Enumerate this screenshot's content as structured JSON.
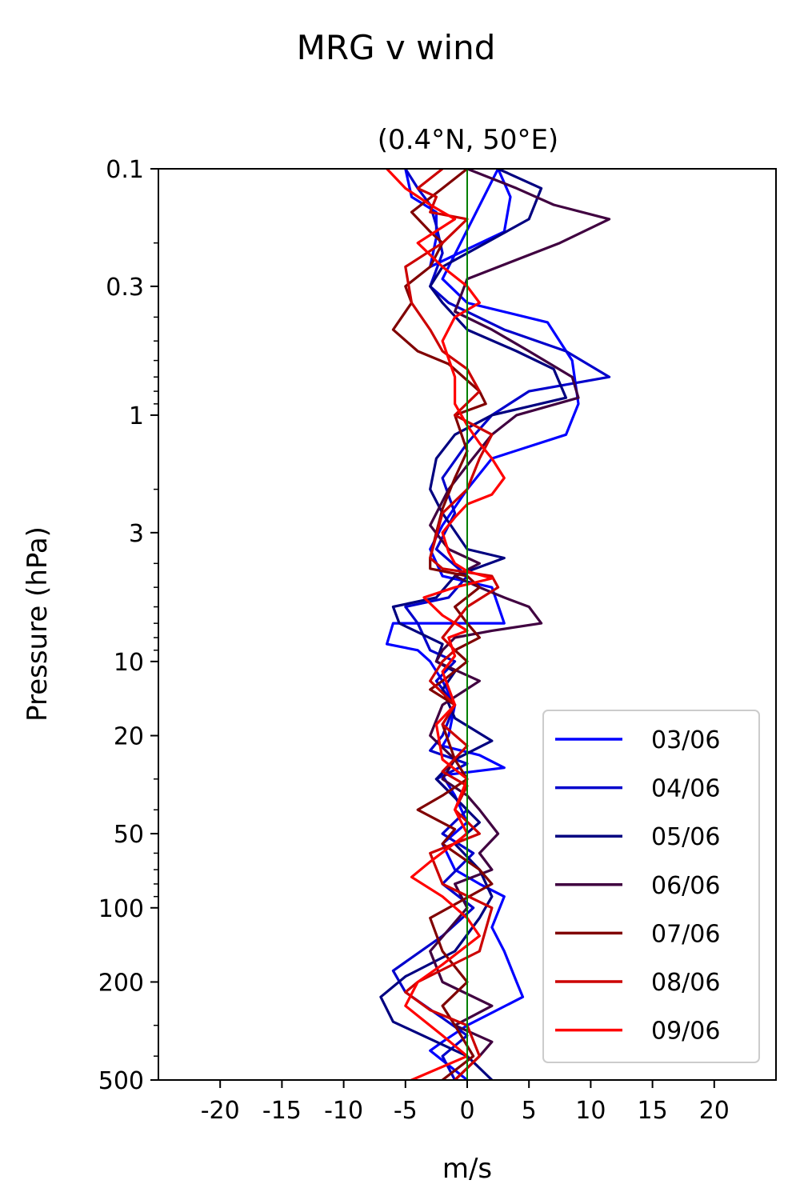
{
  "chart_data": {
    "type": "line",
    "title": "MRG v wind",
    "subtitle": "(0.4°N, 50°E)",
    "xlabel": "m/s",
    "ylabel": "Pressure (hPa)",
    "xlim": [
      -25,
      25
    ],
    "ylim": [
      500,
      0.1
    ],
    "y_scale": "log",
    "x_ticks": [
      -20,
      -15,
      -10,
      -5,
      0,
      5,
      10,
      15,
      20
    ],
    "x_tick_labels": [
      "-20",
      "-15",
      "-10",
      "-5",
      "0",
      "5",
      "10",
      "15",
      "20"
    ],
    "y_ticks": [
      0.1,
      0.3,
      1,
      3,
      10,
      20,
      50,
      100,
      200,
      500
    ],
    "y_tick_labels": [
      "0.1",
      "0.3",
      "1",
      "3",
      "10",
      "20",
      "50",
      "100",
      "200",
      "500"
    ],
    "grid": false,
    "legend_position": "lower-right",
    "zero_line_color": "#008000",
    "series": [
      {
        "name": "03/06",
        "color": "#0000ff",
        "points": [
          [
            -5,
            0.1
          ],
          [
            -4.5,
            0.13
          ],
          [
            -2.5,
            0.15
          ],
          [
            -2.5,
            0.19
          ],
          [
            -3,
            0.25
          ],
          [
            3,
            0.18
          ],
          [
            3.5,
            0.13
          ],
          [
            2.5,
            0.1
          ],
          [
            -2,
            0.28
          ],
          [
            0,
            0.35
          ],
          [
            6.5,
            0.42
          ],
          [
            8.5,
            0.6
          ],
          [
            9,
            0.9
          ],
          [
            8,
            1.2
          ],
          [
            2,
            1.5
          ],
          [
            0,
            2
          ],
          [
            -2,
            2.8
          ],
          [
            -3,
            3.5
          ],
          [
            -2,
            4.5
          ],
          [
            2,
            5
          ],
          [
            3,
            7
          ],
          [
            -6,
            7
          ],
          [
            -6.5,
            8.5
          ],
          [
            -4,
            9
          ],
          [
            -3,
            10
          ],
          [
            -2,
            12
          ],
          [
            -1,
            15
          ],
          [
            -1.5,
            20
          ],
          [
            -2,
            22
          ],
          [
            1,
            24
          ],
          [
            3,
            27
          ],
          [
            -2,
            29
          ],
          [
            -1,
            35
          ],
          [
            0,
            45
          ],
          [
            -2,
            55
          ],
          [
            -1,
            70
          ],
          [
            1,
            80
          ],
          [
            3,
            90
          ],
          [
            2,
            120
          ],
          [
            3,
            150
          ],
          [
            4,
            200
          ],
          [
            4.5,
            230
          ],
          [
            0,
            300
          ],
          [
            -2,
            350
          ],
          [
            -3,
            380
          ],
          [
            0,
            500
          ]
        ]
      },
      {
        "name": "04/06",
        "color": "#0000cc",
        "points": [
          [
            -5,
            0.1
          ],
          [
            -4,
            0.12
          ],
          [
            -3,
            0.14
          ],
          [
            -2.5,
            0.17
          ],
          [
            -2,
            0.22
          ],
          [
            -3,
            0.3
          ],
          [
            -1.5,
            0.35
          ],
          [
            3,
            0.45
          ],
          [
            8,
            0.55
          ],
          [
            11.5,
            0.7
          ],
          [
            5,
            0.8
          ],
          [
            2,
            1
          ],
          [
            0,
            1.3
          ],
          [
            -2,
            1.8
          ],
          [
            -1,
            2.5
          ],
          [
            -2.5,
            3.5
          ],
          [
            0,
            4.5
          ],
          [
            -1.5,
            5.5
          ],
          [
            -5,
            6
          ],
          [
            -4,
            7
          ],
          [
            -3,
            9
          ],
          [
            -1,
            10
          ],
          [
            -2.5,
            12
          ],
          [
            -1,
            15
          ],
          [
            -2,
            20
          ],
          [
            -3,
            23
          ],
          [
            0,
            26
          ],
          [
            -2.5,
            30
          ],
          [
            0,
            40
          ],
          [
            -2,
            50
          ],
          [
            0.5,
            60
          ],
          [
            -2,
            80
          ],
          [
            0.5,
            100
          ],
          [
            -2,
            130
          ],
          [
            -6,
            180
          ],
          [
            -5,
            220
          ],
          [
            -2,
            280
          ],
          [
            0,
            330
          ],
          [
            -2,
            400
          ],
          [
            -1,
            500
          ]
        ]
      },
      {
        "name": "05/06",
        "color": "#000080",
        "points": [
          [
            2.5,
            0.1
          ],
          [
            6,
            0.12
          ],
          [
            5,
            0.16
          ],
          [
            1.5,
            0.2
          ],
          [
            -2,
            0.25
          ],
          [
            -3,
            0.3
          ],
          [
            -2,
            0.35
          ],
          [
            0,
            0.45
          ],
          [
            4,
            0.55
          ],
          [
            7,
            0.65
          ],
          [
            8,
            0.85
          ],
          [
            2,
            1
          ],
          [
            -1,
            1.2
          ],
          [
            -2.5,
            1.5
          ],
          [
            -3,
            2
          ],
          [
            -2,
            2.5
          ],
          [
            0,
            3.5
          ],
          [
            3,
            3.8
          ],
          [
            -1,
            4.5
          ],
          [
            -2.5,
            5.5
          ],
          [
            -6,
            6
          ],
          [
            -5.5,
            7
          ],
          [
            -2,
            8.5
          ],
          [
            -2.5,
            10
          ],
          [
            -1,
            11
          ],
          [
            -2,
            13
          ],
          [
            -1,
            17
          ],
          [
            2,
            21
          ],
          [
            -1,
            25
          ],
          [
            -2.5,
            30
          ],
          [
            1,
            45
          ],
          [
            -1,
            55
          ],
          [
            1,
            70
          ],
          [
            2,
            90
          ],
          [
            1,
            110
          ],
          [
            -1,
            150
          ],
          [
            -5,
            190
          ],
          [
            -7,
            230
          ],
          [
            -6,
            290
          ],
          [
            0,
            400
          ],
          [
            2,
            500
          ]
        ]
      },
      {
        "name": "06/06",
        "color": "#400040",
        "points": [
          [
            0,
            0.1
          ],
          [
            4,
            0.12
          ],
          [
            7,
            0.14
          ],
          [
            11.5,
            0.16
          ],
          [
            7.5,
            0.2
          ],
          [
            0,
            0.28
          ],
          [
            -1,
            0.38
          ],
          [
            2,
            0.45
          ],
          [
            5,
            0.55
          ],
          [
            8.5,
            0.7
          ],
          [
            9,
            0.85
          ],
          [
            4,
            1
          ],
          [
            2,
            1.2
          ],
          [
            0,
            1.6
          ],
          [
            -1.5,
            2
          ],
          [
            -3,
            2.8
          ],
          [
            -1.5,
            3.5
          ],
          [
            1,
            4
          ],
          [
            -1,
            4.5
          ],
          [
            1,
            5
          ],
          [
            3,
            5.5
          ],
          [
            5,
            6
          ],
          [
            6,
            7
          ],
          [
            2,
            7.5
          ],
          [
            -1,
            8
          ],
          [
            -2,
            9
          ],
          [
            -2.5,
            10
          ],
          [
            1,
            12
          ],
          [
            -2,
            15
          ],
          [
            -3,
            20
          ],
          [
            -1,
            25
          ],
          [
            -2,
            30
          ],
          [
            0,
            35
          ],
          [
            1,
            40
          ],
          [
            2.5,
            50
          ],
          [
            1,
            60
          ],
          [
            2,
            70
          ],
          [
            -1,
            80
          ],
          [
            0,
            100
          ],
          [
            -3,
            150
          ],
          [
            -2,
            200
          ],
          [
            2,
            250
          ],
          [
            -1,
            300
          ],
          [
            2,
            350
          ],
          [
            1,
            400
          ],
          [
            -1,
            500
          ]
        ]
      },
      {
        "name": "07/06",
        "color": "#800000",
        "points": [
          [
            0,
            0.1
          ],
          [
            -2,
            0.12
          ],
          [
            -4.5,
            0.15
          ],
          [
            -3,
            0.18
          ],
          [
            -2,
            0.2
          ],
          [
            -3,
            0.25
          ],
          [
            -5,
            0.3
          ],
          [
            -4.5,
            0.35
          ],
          [
            -6,
            0.45
          ],
          [
            -4,
            0.55
          ],
          [
            -1.5,
            0.62
          ],
          [
            1,
            0.8
          ],
          [
            1.5,
            0.9
          ],
          [
            -1,
            1
          ],
          [
            0,
            1.4
          ],
          [
            -1,
            1.8
          ],
          [
            -2,
            2.4
          ],
          [
            -2.5,
            3
          ],
          [
            -3,
            3.8
          ],
          [
            -3,
            4.2
          ],
          [
            0,
            4.5
          ],
          [
            1,
            5
          ],
          [
            -1,
            6
          ],
          [
            0,
            7
          ],
          [
            1,
            8
          ],
          [
            -1,
            9
          ],
          [
            0,
            10
          ],
          [
            -2,
            12
          ],
          [
            -3,
            13
          ],
          [
            -1,
            15
          ],
          [
            -2,
            18
          ],
          [
            -1,
            25
          ],
          [
            0,
            30
          ],
          [
            -2,
            35
          ],
          [
            -4,
            40
          ],
          [
            -1,
            48
          ],
          [
            -2,
            55
          ],
          [
            1,
            70
          ],
          [
            2,
            80
          ],
          [
            -3,
            110
          ],
          [
            -2,
            150
          ],
          [
            0,
            200
          ],
          [
            -2,
            250
          ],
          [
            -1,
            300
          ],
          [
            0.5,
            400
          ],
          [
            -2,
            500
          ]
        ]
      },
      {
        "name": "08/06",
        "color": "#cc0000",
        "points": [
          [
            -2,
            0.1
          ],
          [
            -4,
            0.12
          ],
          [
            -2.5,
            0.13
          ],
          [
            -3,
            0.15
          ],
          [
            0,
            0.16
          ],
          [
            -2,
            0.2
          ],
          [
            -5,
            0.25
          ],
          [
            -4.5,
            0.35
          ],
          [
            -3,
            0.45
          ],
          [
            -2,
            0.55
          ],
          [
            0,
            0.65
          ],
          [
            1,
            0.8
          ],
          [
            -1,
            1
          ],
          [
            2,
            1.2
          ],
          [
            1,
            1.5
          ],
          [
            0,
            2
          ],
          [
            -2,
            2.5
          ],
          [
            -3,
            3.8
          ],
          [
            -2,
            4.2
          ],
          [
            2,
            4.5
          ],
          [
            2.5,
            5
          ],
          [
            0,
            6
          ],
          [
            -2,
            8
          ],
          [
            -1,
            9
          ],
          [
            -2,
            10
          ],
          [
            -3,
            12
          ],
          [
            -1,
            15
          ],
          [
            -2,
            18
          ],
          [
            0,
            22
          ],
          [
            -2,
            28
          ],
          [
            0,
            32
          ],
          [
            -1,
            40
          ],
          [
            1,
            50
          ],
          [
            -3,
            60
          ],
          [
            -2,
            80
          ],
          [
            2,
            100
          ],
          [
            1,
            150
          ],
          [
            -4,
            200
          ],
          [
            -5,
            220
          ],
          [
            -3,
            260
          ],
          [
            0,
            300
          ],
          [
            1,
            400
          ],
          [
            -1,
            500
          ]
        ]
      },
      {
        "name": "09/06",
        "color": "#ff0000",
        "points": [
          [
            -6.5,
            0.1
          ],
          [
            -5,
            0.12
          ],
          [
            -3,
            0.14
          ],
          [
            -1,
            0.16
          ],
          [
            -4,
            0.2
          ],
          [
            -2,
            0.25
          ],
          [
            0,
            0.3
          ],
          [
            1,
            0.35
          ],
          [
            -1,
            0.4
          ],
          [
            -2,
            0.5
          ],
          [
            -1,
            0.7
          ],
          [
            -1,
            0.9
          ],
          [
            0,
            1.1
          ],
          [
            1,
            1.3
          ],
          [
            2,
            1.5
          ],
          [
            3,
            1.8
          ],
          [
            2,
            2.1
          ],
          [
            0,
            2.3
          ],
          [
            -1,
            2.6
          ],
          [
            -2,
            3
          ],
          [
            -1.5,
            3.6
          ],
          [
            -1,
            4
          ],
          [
            0,
            4.3
          ],
          [
            2,
            4.6
          ],
          [
            -1,
            5
          ],
          [
            -3.5,
            5.5
          ],
          [
            -2,
            6.5
          ],
          [
            0,
            7.5
          ],
          [
            -1.5,
            8
          ],
          [
            -1,
            9.5
          ],
          [
            -2,
            11
          ],
          [
            -1,
            15
          ],
          [
            -2.5,
            18
          ],
          [
            -2,
            25
          ],
          [
            0,
            30
          ],
          [
            -1,
            40
          ],
          [
            0,
            50
          ],
          [
            -3,
            65
          ],
          [
            -4.5,
            75
          ],
          [
            -2,
            90
          ],
          [
            0,
            110
          ],
          [
            1,
            130
          ],
          [
            -2,
            170
          ],
          [
            -4,
            200
          ],
          [
            -5,
            250
          ],
          [
            -2,
            330
          ],
          [
            0,
            400
          ],
          [
            -4.5,
            500
          ]
        ]
      }
    ]
  }
}
